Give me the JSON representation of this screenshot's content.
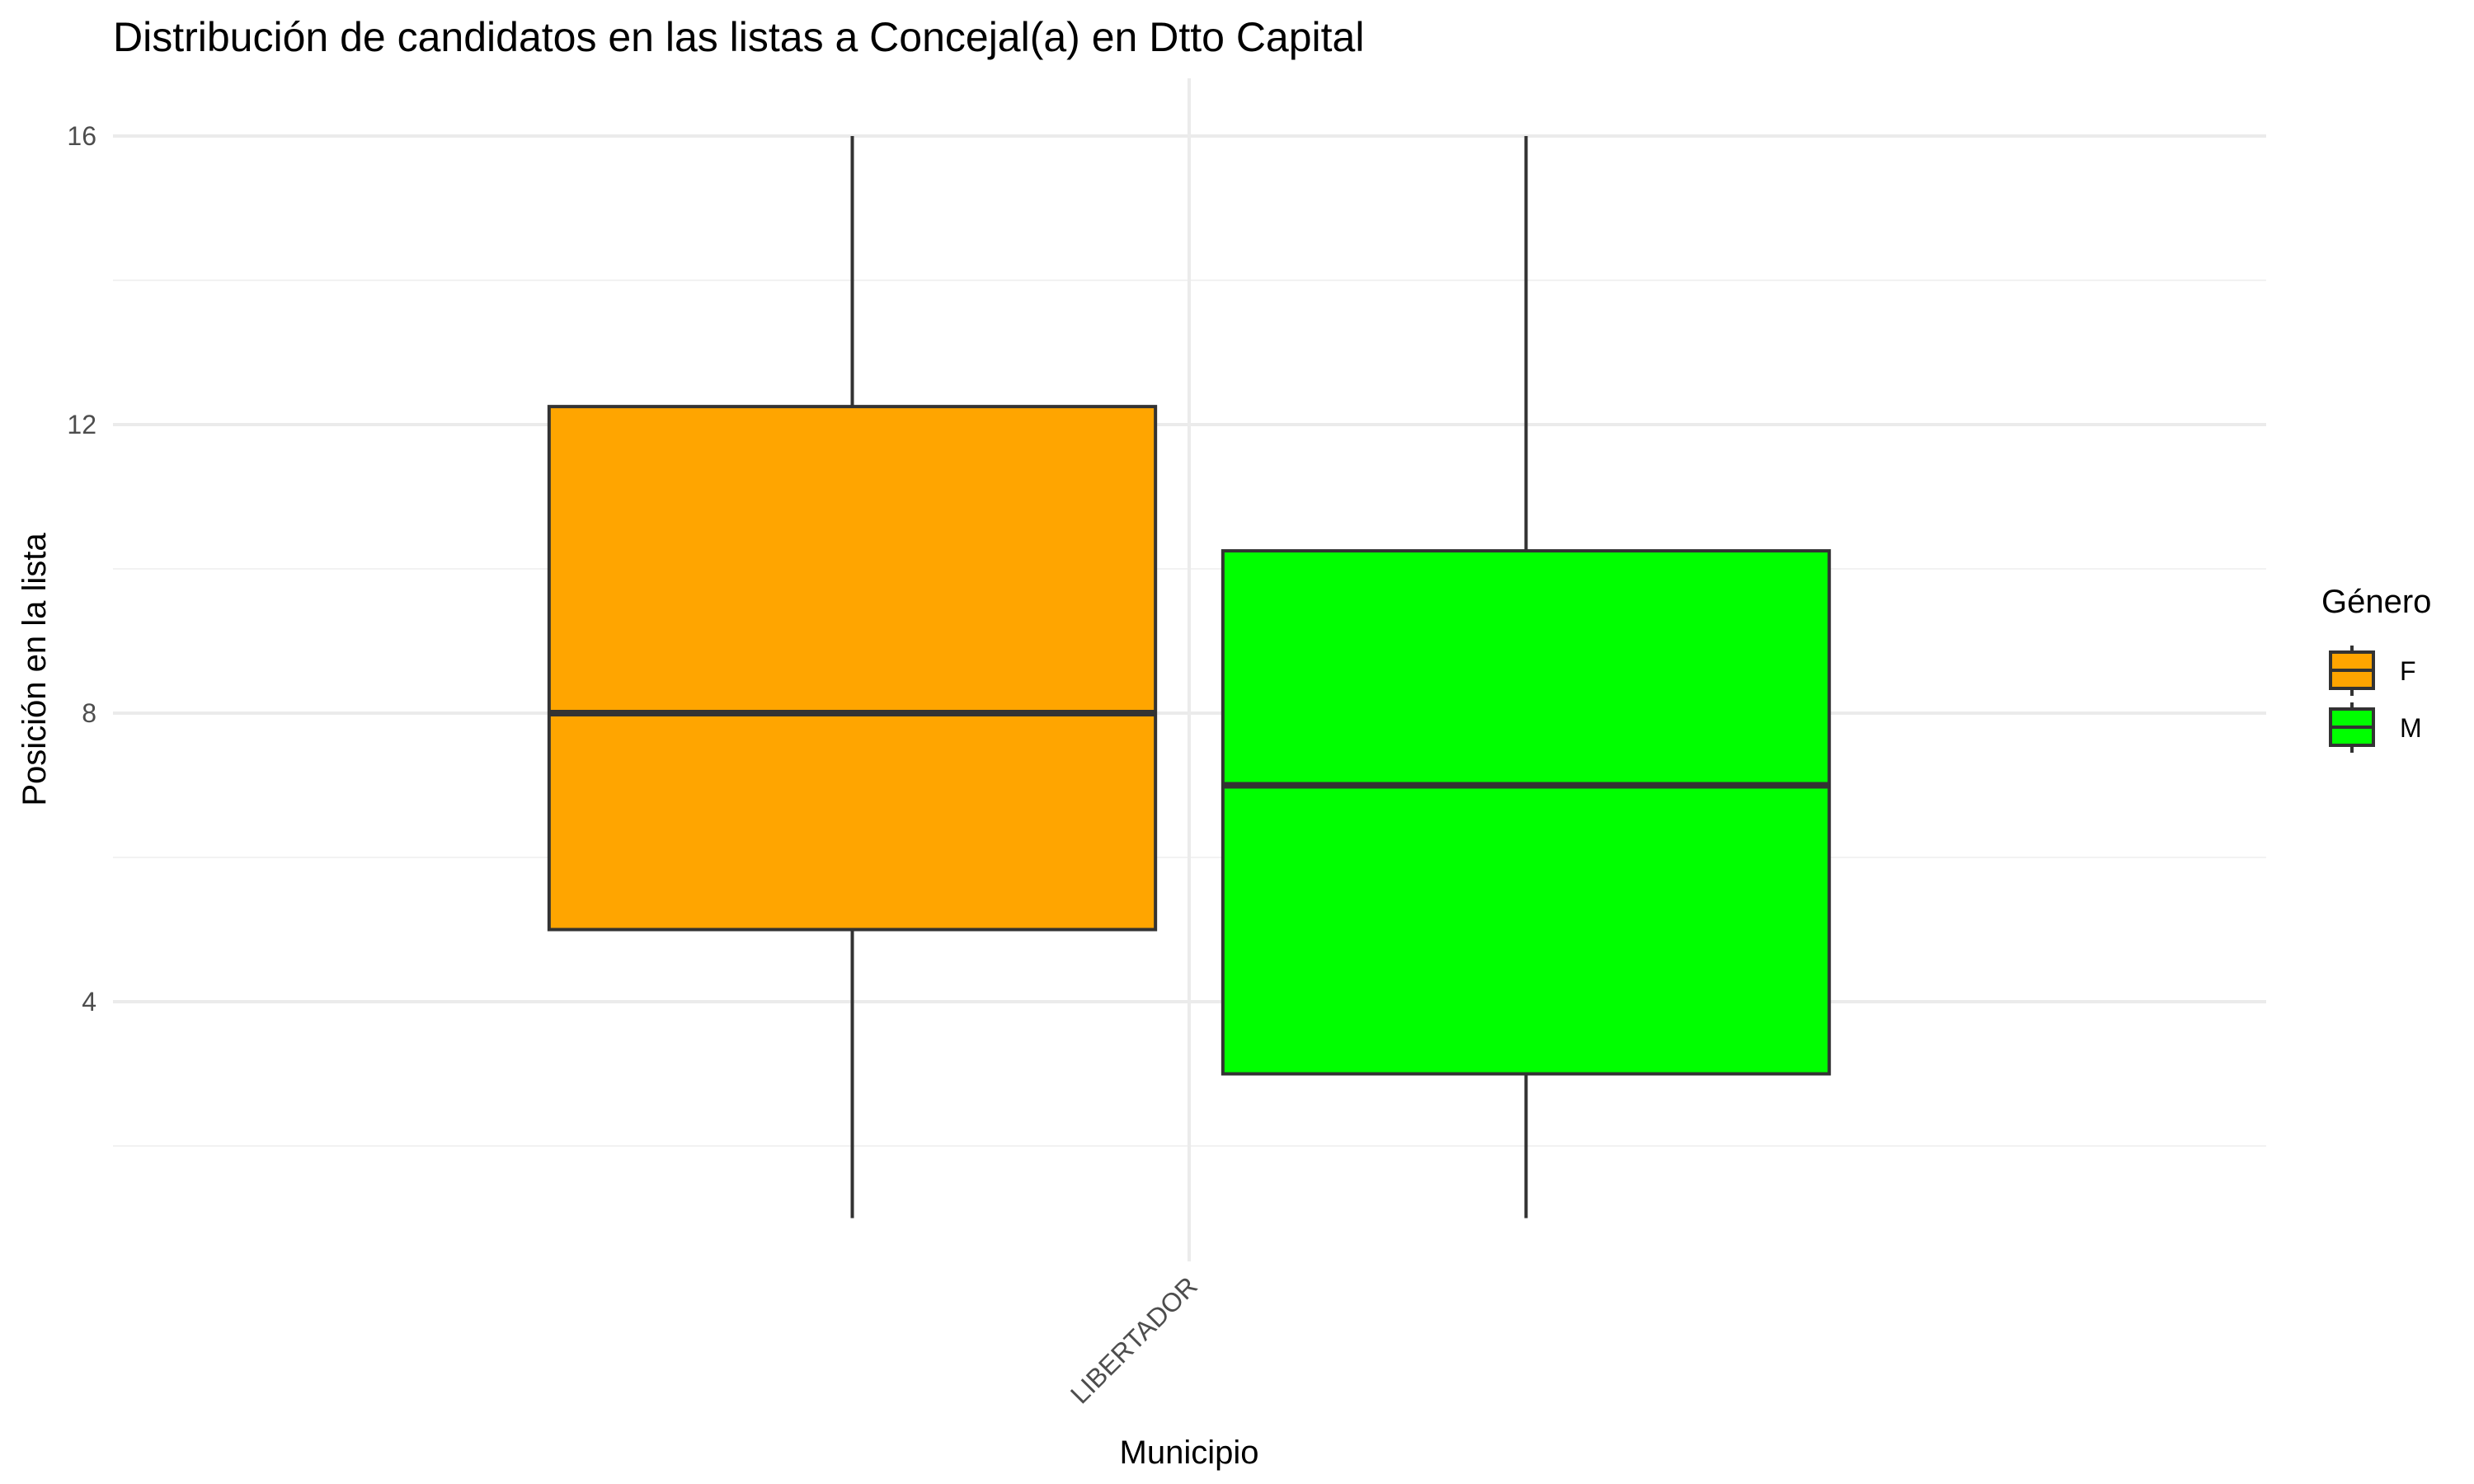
{
  "chart_data": {
    "type": "boxplot",
    "title": "Distribución de candidatos en las listas a Concejal(a) en Dtto Capital",
    "xlabel": "Municipio",
    "ylabel": "Posición en la lista",
    "categories": [
      "LIBERTADOR"
    ],
    "y_ticks": [
      4,
      8,
      12,
      16
    ],
    "ylim": [
      0.4,
      16.8
    ],
    "grid": true,
    "legend": {
      "title": "Género",
      "placement": "right",
      "entries": [
        {
          "label": "F",
          "color": "#FFA500"
        },
        {
          "label": "M",
          "color": "#00FF00"
        }
      ]
    },
    "series": [
      {
        "name": "F",
        "category": "LIBERTADOR",
        "color": "#FFA500",
        "min": 1,
        "q1": 5,
        "median": 8,
        "q3": 12.25,
        "max": 16
      },
      {
        "name": "M",
        "category": "LIBERTADOR",
        "color": "#00FF00",
        "min": 1,
        "q1": 3,
        "median": 7,
        "q3": 10.25,
        "max": 16
      }
    ]
  }
}
